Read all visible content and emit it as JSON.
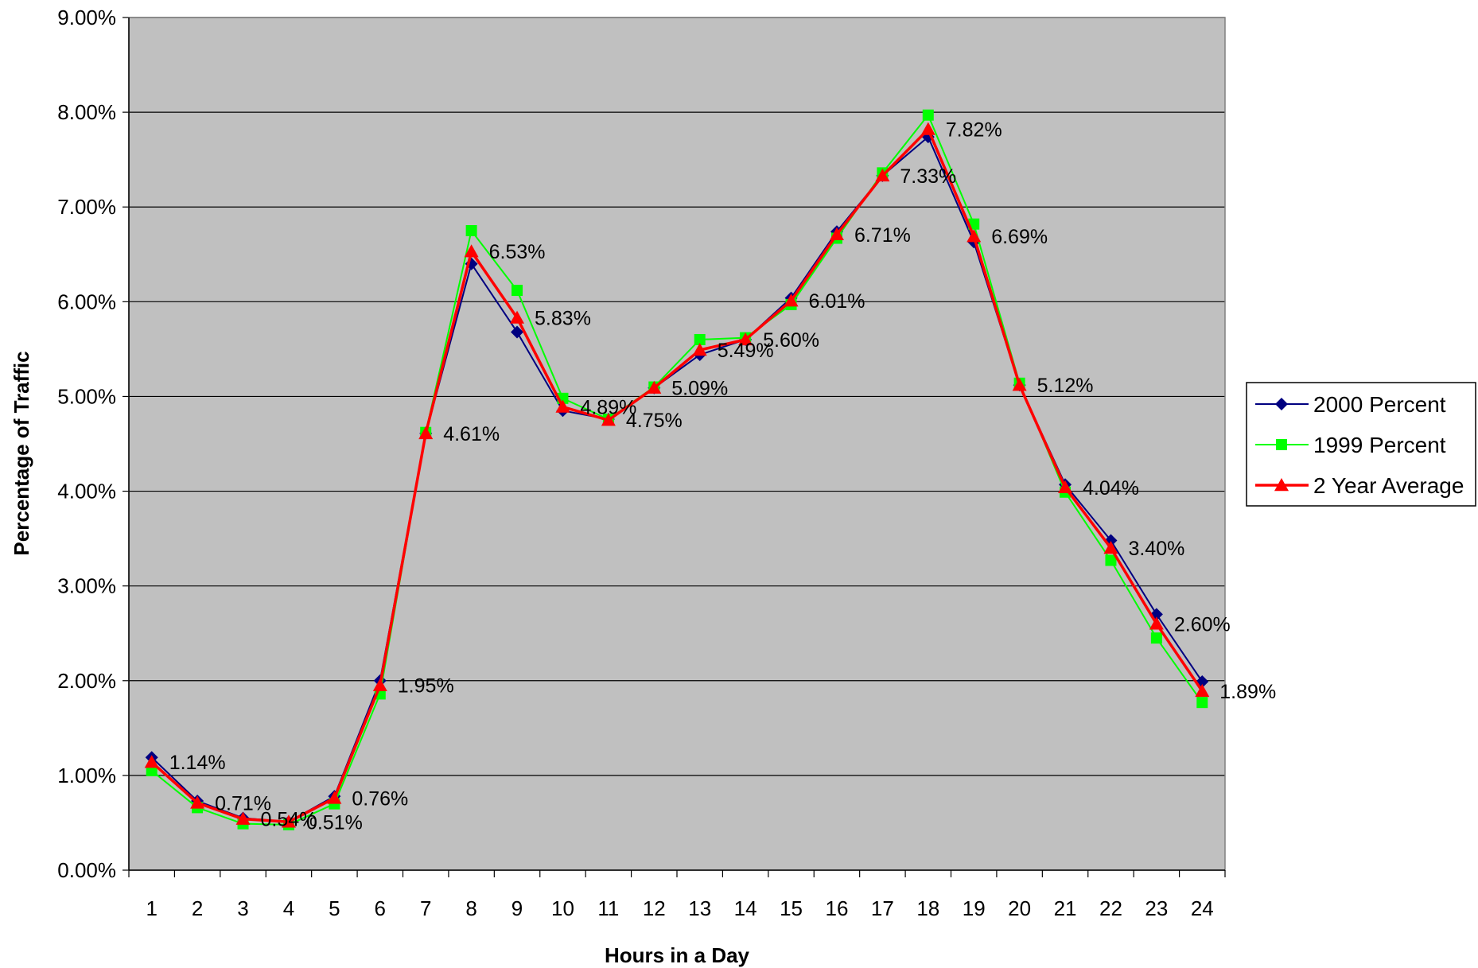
{
  "chart_data": {
    "type": "line",
    "xlabel": "Hours in a Day",
    "ylabel": "Percentage of Traffic",
    "ylim": [
      0,
      9
    ],
    "y_tick_step": 1,
    "y_tick_format": "percent_2dp",
    "grid": true,
    "plot_background": "#c0c0c0",
    "legend_position": "right",
    "categories": [
      "1",
      "2",
      "3",
      "4",
      "5",
      "6",
      "7",
      "8",
      "9",
      "10",
      "11",
      "12",
      "13",
      "14",
      "15",
      "16",
      "17",
      "18",
      "19",
      "20",
      "21",
      "22",
      "23",
      "24"
    ],
    "series": [
      {
        "name": "2000 Percent",
        "color": "#000080",
        "marker": "diamond",
        "values": [
          1.19,
          0.73,
          0.55,
          0.51,
          0.78,
          2.0,
          4.61,
          6.4,
          5.68,
          4.85,
          4.76,
          5.09,
          5.44,
          5.6,
          6.04,
          6.74,
          7.33,
          7.74,
          6.63,
          5.12,
          4.07,
          3.48,
          2.7,
          1.99
        ]
      },
      {
        "name": "1999 Percent",
        "color": "#00ff00",
        "marker": "square",
        "values": [
          1.05,
          0.66,
          0.49,
          0.48,
          0.7,
          1.86,
          4.62,
          6.75,
          6.12,
          4.98,
          4.76,
          5.1,
          5.6,
          5.62,
          5.97,
          6.67,
          7.36,
          7.97,
          6.82,
          5.14,
          3.99,
          3.27,
          2.45,
          1.77
        ]
      },
      {
        "name": "2 Year Average",
        "color": "#ff0000",
        "marker": "triangle",
        "values": [
          1.14,
          0.71,
          0.54,
          0.51,
          0.76,
          1.95,
          4.61,
          6.53,
          5.83,
          4.89,
          4.75,
          5.09,
          5.49,
          5.6,
          6.01,
          6.71,
          7.33,
          7.82,
          6.69,
          5.12,
          4.04,
          3.4,
          2.6,
          1.89
        ],
        "data_labels": [
          "1.14%",
          "0.71%",
          "0.54%",
          "0.51%",
          "0.76%",
          "1.95%",
          "4.61%",
          "6.53%",
          "5.83%",
          "4.89%",
          "4.75%",
          "5.09%",
          "5.49%",
          "5.60%",
          "6.01%",
          "6.71%",
          "7.33%",
          "7.82%",
          "6.69%",
          "5.12%",
          "4.04%",
          "3.40%",
          "2.60%",
          "1.89%"
        ]
      }
    ]
  }
}
